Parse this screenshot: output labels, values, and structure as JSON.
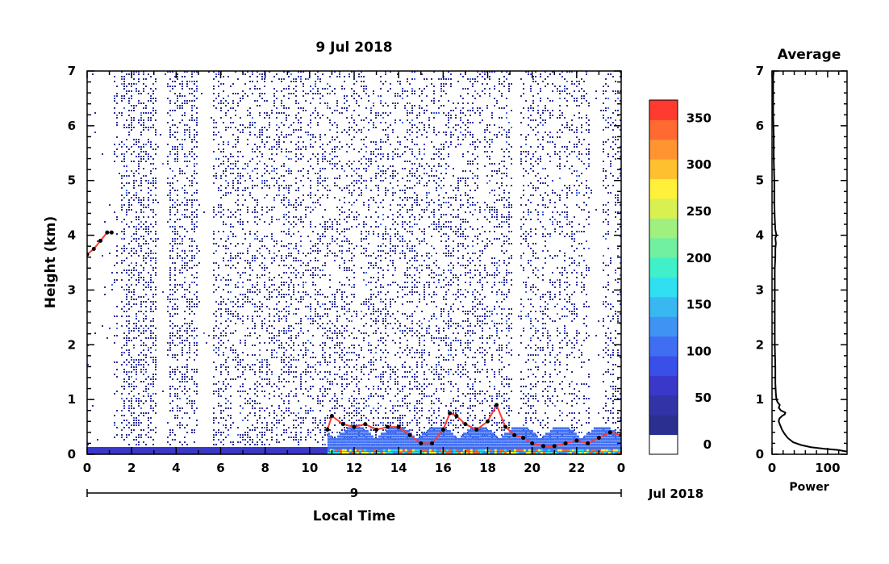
{
  "chart_data": [
    {
      "type": "heatmap",
      "title": "9 Jul 2018",
      "xlabel": "Local Time",
      "ylabel": "Height (km)",
      "x_ticks": [
        "0",
        "2",
        "4",
        "6",
        "8",
        "10",
        "12",
        "14",
        "16",
        "18",
        "20",
        "22",
        "0"
      ],
      "y_ticks": [
        "0",
        "1",
        "2",
        "3",
        "4",
        "5",
        "6",
        "7"
      ],
      "xlim": [
        0,
        24
      ],
      "ylim": [
        0,
        7
      ],
      "date_day_label": "9",
      "date_month_label": "Jul 2018",
      "colorbar": {
        "labels": [
          "0",
          "50",
          "100",
          "150",
          "200",
          "250",
          "300",
          "350"
        ],
        "range": [
          0,
          380
        ],
        "colors": [
          "#ffffff",
          "#2b2f8f",
          "#3333a8",
          "#3a38c8",
          "#3a4ee8",
          "#3f6ef2",
          "#3f93f2",
          "#38b8f0",
          "#30e0f0",
          "#40f0c8",
          "#70f0a0",
          "#a0f080",
          "#d8f050",
          "#fff03a",
          "#ffc030",
          "#ff9430",
          "#ff6a30",
          "#ff3a30"
        ]
      },
      "series": [
        {
          "x": [
            0.0,
            0.3,
            0.6,
            0.9,
            1.1
          ],
          "y": [
            3.65,
            3.75,
            3.9,
            4.05,
            4.05
          ]
        },
        {
          "x": [
            10.8,
            11.0,
            11.5,
            12.0,
            12.5,
            13.0,
            13.5,
            14.0,
            14.5,
            15.0,
            15.5,
            16.0,
            16.3,
            16.6,
            17.0,
            17.5,
            18.0,
            18.4,
            18.8,
            19.2,
            19.6,
            20.0,
            20.5,
            21.0,
            21.5,
            22.0,
            22.5,
            23.0,
            23.5,
            24.0
          ],
          "y": [
            0.45,
            0.7,
            0.55,
            0.5,
            0.55,
            0.45,
            0.5,
            0.5,
            0.35,
            0.2,
            0.2,
            0.45,
            0.75,
            0.7,
            0.55,
            0.45,
            0.6,
            0.9,
            0.5,
            0.35,
            0.3,
            0.2,
            0.15,
            0.15,
            0.2,
            0.25,
            0.2,
            0.3,
            0.4,
            0.35
          ]
        }
      ]
    },
    {
      "type": "line",
      "title": "Average",
      "xlabel": "Power",
      "x_ticks": [
        "0",
        "100"
      ],
      "y_ticks": [
        "0",
        "1",
        "2",
        "3",
        "4",
        "5",
        "6",
        "7"
      ],
      "xlim": [
        0,
        135
      ],
      "ylim": [
        0,
        7
      ],
      "series": [
        {
          "x": [
            135,
            118,
            95,
            70,
            52,
            38,
            28,
            22,
            18,
            16,
            14,
            12,
            13,
            18,
            23,
            24,
            16,
            12,
            14,
            10,
            8,
            7,
            6,
            6,
            5,
            5,
            5,
            5,
            6,
            6,
            7,
            6,
            8,
            6,
            5,
            4,
            4,
            3,
            3,
            2,
            2,
            2,
            3
          ],
          "y": [
            0.05,
            0.08,
            0.1,
            0.13,
            0.17,
            0.22,
            0.3,
            0.38,
            0.45,
            0.5,
            0.55,
            0.6,
            0.65,
            0.7,
            0.73,
            0.76,
            0.8,
            0.85,
            0.9,
            0.95,
            1.0,
            1.1,
            1.3,
            1.6,
            2.0,
            2.5,
            3.0,
            3.4,
            3.6,
            3.75,
            3.85,
            3.95,
            4.0,
            4.1,
            4.3,
            4.6,
            5.0,
            5.4,
            5.8,
            6.2,
            6.6,
            6.9,
            7.0
          ]
        }
      ]
    }
  ]
}
